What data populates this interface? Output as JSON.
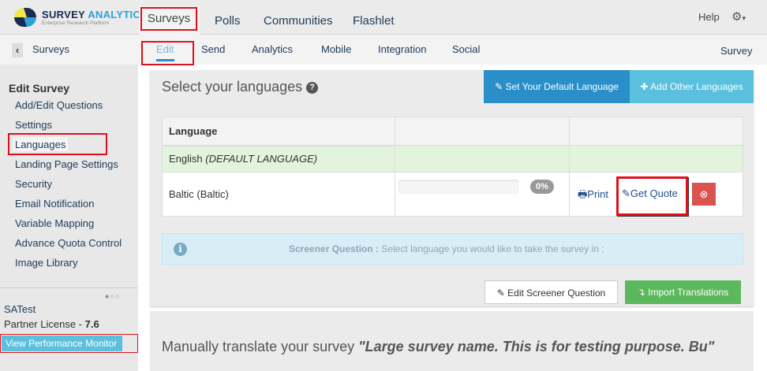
{
  "brand": {
    "name_part1": "SURVEY",
    "name_part2": "ANALYTICS",
    "tagline": "Enterprise Research Platform"
  },
  "topnav": {
    "items": [
      "Surveys",
      "Polls",
      "Communities",
      "Flashlet"
    ],
    "help": "Help"
  },
  "subnav": {
    "back_label": "Surveys",
    "items": [
      "Edit",
      "Send",
      "Analytics",
      "Mobile",
      "Integration",
      "Social"
    ],
    "right_label": "Survey"
  },
  "sidebar": {
    "heading": "Edit Survey",
    "items": [
      "Add/Edit Questions",
      "Settings",
      "Languages",
      "Landing Page Settings",
      "Security",
      "Email Notification",
      "Variable Mapping",
      "Advance Quota Control",
      "Image Library"
    ],
    "user": "SATest",
    "license_label": "Partner License - ",
    "license_version": "7.6",
    "perf_button": "View Performance Monitor"
  },
  "panel": {
    "title": "Select your languages",
    "btn_default": "Set Your Default Language",
    "btn_add": "Add Other Languages",
    "table": {
      "header": "Language",
      "rows": [
        {
          "name": "English",
          "note": "(DEFAULT LANGUAGE)"
        },
        {
          "name": "Baltic (Baltic)",
          "progress": "0%",
          "progress_value": 0,
          "print": "Print",
          "quote": "Get Quote"
        }
      ]
    },
    "info_label": "Screener Question :",
    "info_text": "Select language you would like to take the survey in :",
    "btn_edit_screener": "Edit Screener Question",
    "btn_import": "Import Translations"
  },
  "manual": {
    "prefix": "Manually translate your survey",
    "survey_name": "\"Large survey name. This is for testing purpose. Bu\""
  },
  "colors": {
    "primary": "#2a8fc9",
    "info": "#5bc0de",
    "success": "#5cb85c",
    "danger": "#d9534f",
    "highlight": "#e0101a"
  }
}
